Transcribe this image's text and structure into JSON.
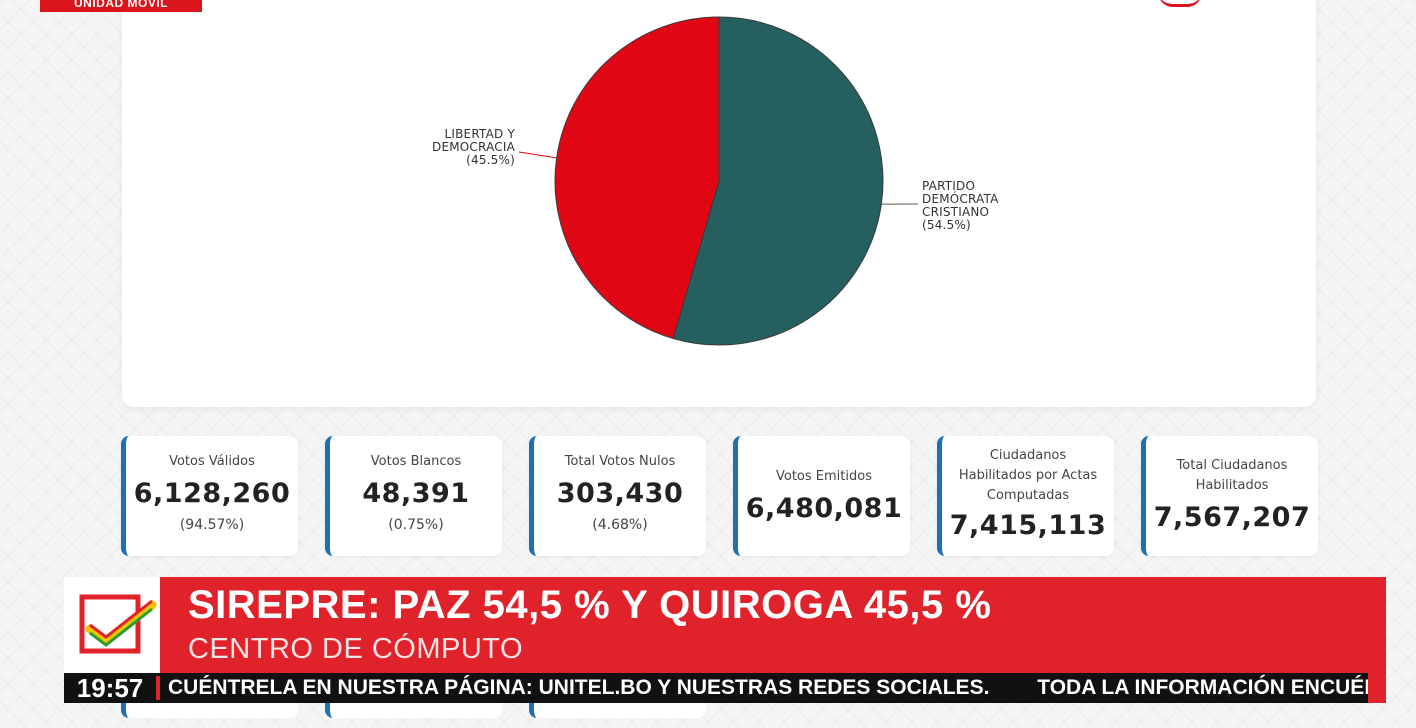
{
  "broadcast": {
    "badge": "UNIDAD MÓVIL"
  },
  "chart_data": {
    "type": "pie",
    "slices": [
      {
        "label": "PARTIDO DEMÓCRATA CRISTIANO",
        "label_lines": [
          "PARTIDO",
          "DEMÓCRATA",
          "CRISTIANO",
          "(54.5%)"
        ],
        "value": 54.5,
        "color": "#255f60"
      },
      {
        "label": "LIBERTAD Y DEMOCRACIA",
        "label_lines": [
          "LIBERTAD Y",
          "DEMOCRACIA",
          "(45.5%)"
        ],
        "value": 45.5,
        "color": "#e00613"
      }
    ]
  },
  "stats": [
    {
      "label": "Votos Válidos",
      "value": "6,128,260",
      "pct": "(94.57%)"
    },
    {
      "label": "Votos Blancos",
      "value": "48,391",
      "pct": "(0.75%)"
    },
    {
      "label": "Total Votos Nulos",
      "value": "303,430",
      "pct": "(4.68%)"
    },
    {
      "label": "Votos Emitidos",
      "value": "6,480,081",
      "pct": ""
    },
    {
      "label_lines": [
        "Ciudadanos",
        "Habilitados por Actas",
        "Computadas"
      ],
      "value": "7,415,113",
      "pct": ""
    },
    {
      "label_lines": [
        "Total Ciudadanos",
        "Habilitados"
      ],
      "value": "7,567,207",
      "pct": ""
    }
  ],
  "lower_third": {
    "headline": "SIREPRE: PAZ 54,5 % Y QUIROGA 45,5 %",
    "subtitle": "CENTRO DE CÓMPUTO",
    "icon": "checkbox-check-icon",
    "colors": {
      "band": "#e0222b",
      "check_red": "#e0222b",
      "check_yellow": "#f4c400",
      "check_green": "#2e9b2e"
    }
  },
  "ticker": {
    "time": "19:57",
    "items": [
      "CUÉNTRELA EN NUESTRA PÁGINA: UNITEL.BO Y NUESTRAS REDES SOCIALES.",
      "TODA LA INFORMACIÓN ENCUÉNTRELA EN NUES"
    ]
  },
  "colors": {
    "accent": "#1f6fb3",
    "brand_red": "#d9141b"
  }
}
